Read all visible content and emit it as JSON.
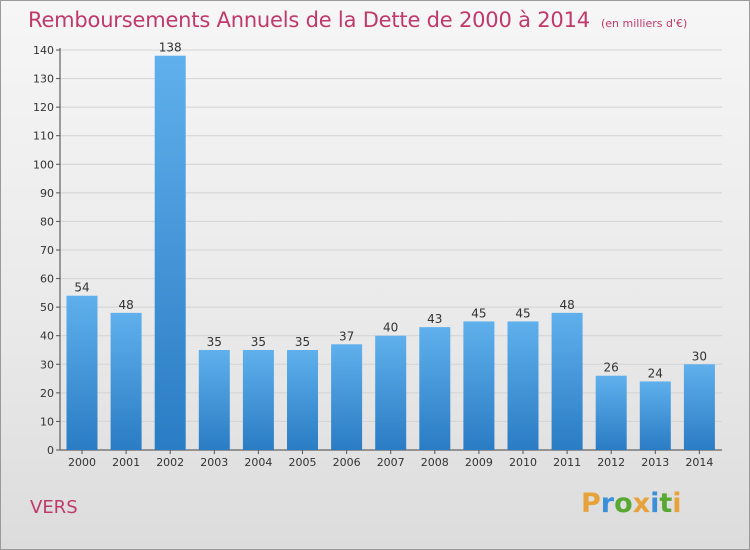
{
  "header": {
    "title": "Remboursements Annuels de la Dette de 2000 à 2014",
    "unit": "(en milliers d'€)"
  },
  "footer": {
    "commune": "VERS",
    "logo_text": "Proxiti"
  },
  "colors": {
    "title": "#c0396b",
    "bar_top": "#5fb0ec",
    "bar_bottom": "#2a7cc4",
    "logo_letters": [
      "#e8a23a",
      "#3b8fd8",
      "#5aa834",
      "#e8a23a",
      "#3b8fd8",
      "#5aa834",
      "#e8a23a"
    ]
  },
  "chart_data": {
    "type": "bar",
    "title": "Remboursements Annuels de la Dette de 2000 à 2014",
    "unit_label": "(en milliers d'€)",
    "categories": [
      "2000",
      "2001",
      "2002",
      "2003",
      "2004",
      "2005",
      "2006",
      "2007",
      "2008",
      "2009",
      "2010",
      "2011",
      "2012",
      "2013",
      "2014"
    ],
    "values": [
      54,
      48,
      138,
      35,
      35,
      35,
      37,
      40,
      43,
      45,
      45,
      48,
      26,
      24,
      30
    ],
    "ylim": [
      0,
      140
    ],
    "yticks": [
      0,
      10,
      20,
      30,
      40,
      50,
      60,
      70,
      80,
      90,
      100,
      110,
      120,
      130,
      140
    ],
    "grid": true,
    "legend": "none"
  }
}
